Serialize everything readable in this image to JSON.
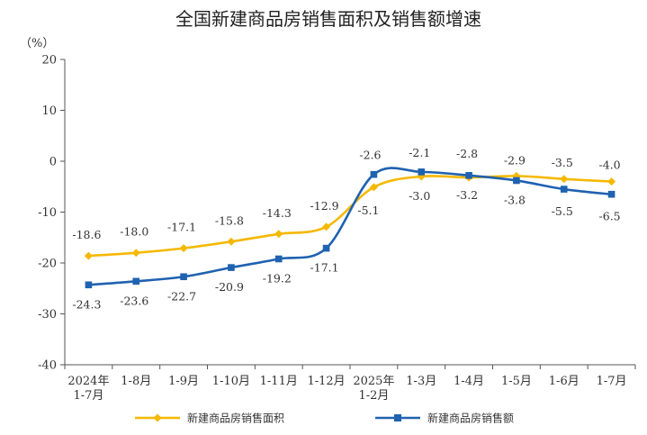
{
  "chart_data": {
    "type": "line",
    "title": "全国新建商品房销售面积及销售额增速",
    "unit": "（%）",
    "xlabel": "",
    "ylabel": "",
    "ylim": [
      -40,
      20
    ],
    "yticks": [
      20,
      10,
      0,
      -10,
      -20,
      -30,
      -40
    ],
    "categories": [
      [
        "2024年",
        "1-7月"
      ],
      [
        "1-8月"
      ],
      [
        "1-9月"
      ],
      [
        "1-10月"
      ],
      [
        "1-11月"
      ],
      [
        "1-12月"
      ],
      [
        "2025年",
        "1-2月"
      ],
      [
        "1-3月"
      ],
      [
        "1-4月"
      ],
      [
        "1-5月"
      ],
      [
        "1-6月"
      ],
      [
        "1-7月"
      ]
    ],
    "series": [
      {
        "name": "新建商品房销售面积",
        "color": "#f5b800",
        "marker": "diamond",
        "values": [
          -18.6,
          -18.0,
          -17.1,
          -15.8,
          -14.3,
          -12.9,
          -5.1,
          -3.0,
          -3.2,
          -2.9,
          -3.5,
          -4.0
        ],
        "labels": [
          "-18.6",
          "-18.0",
          "-17.1",
          "-15.8",
          "-14.3",
          "-12.9",
          "-5.1",
          "-3.0",
          "-3.2",
          "-2.9",
          "-3.5",
          "-4.0"
        ]
      },
      {
        "name": "新建商品房销售额",
        "color": "#1f62b0",
        "marker": "square",
        "values": [
          -24.3,
          -23.6,
          -22.7,
          -20.9,
          -19.2,
          -17.1,
          -2.6,
          -2.1,
          -2.8,
          -3.8,
          -5.5,
          -6.5
        ],
        "labels": [
          "-24.3",
          "-23.6",
          "-22.7",
          "-20.9",
          "-19.2",
          "-17.1",
          "-2.6",
          "-2.1",
          "-2.8",
          "-3.8",
          "-5.5",
          "-6.5"
        ]
      }
    ],
    "legend_position": "bottom",
    "grid": false
  }
}
